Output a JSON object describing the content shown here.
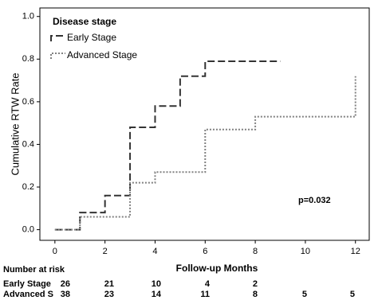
{
  "chart_data": {
    "type": "step",
    "y_label": "Cumulative RTW Rate",
    "x_label": "Follow-up Months",
    "legend_title": "Disease stage",
    "legend_position": "upper left",
    "annotation": "p=0.032",
    "xlim": [
      -0.6,
      12.55
    ],
    "ylim": [
      -0.05,
      1.04
    ],
    "xticks": [
      0,
      2,
      4,
      6,
      8,
      10,
      12
    ],
    "yticks": [
      {
        "value": 0,
        "label": "0.0"
      },
      0.2,
      0.4,
      0.6,
      0.8,
      {
        "value": 1,
        "label": "1.0"
      }
    ],
    "series": [
      {
        "name": "Early Stage",
        "color": "#333333",
        "dash": "9,4",
        "x": [
          0,
          1,
          2,
          3,
          4,
          5,
          6,
          9
        ],
        "values": [
          0,
          0.08,
          0.16,
          0.48,
          0.58,
          0.72,
          0.79,
          0.79
        ]
      },
      {
        "name": "Advanced Stage",
        "color": "#808080",
        "dash": "2,2",
        "x": [
          0,
          1,
          3,
          4,
          6,
          8,
          12
        ],
        "values": [
          0,
          0.06,
          0.22,
          0.27,
          0.47,
          0.53,
          0.72
        ]
      }
    ],
    "risk_table": {
      "title": "Number at risk",
      "rows": [
        {
          "label": "Early Stage",
          "counts": [
            26,
            21,
            10,
            4,
            2
          ]
        },
        {
          "label": "Advanced S",
          "counts": [
            38,
            23,
            14,
            11,
            8,
            5,
            5
          ]
        }
      ]
    }
  }
}
